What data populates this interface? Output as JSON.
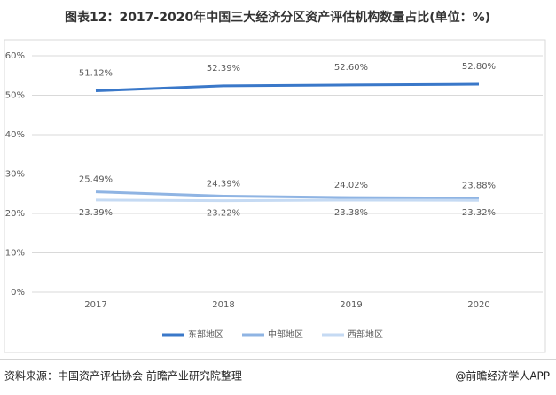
{
  "chart_data": {
    "type": "line",
    "title": "图表12：2017-2020年中国三大经济分区资产评估机构数量占比(单位：%)",
    "categories": [
      "2017",
      "2018",
      "2019",
      "2020"
    ],
    "series": [
      {
        "name": "东部地区",
        "color": "#3a78c9",
        "values": [
          51.12,
          52.39,
          52.6,
          52.8
        ],
        "value_labels": [
          "51.12%",
          "52.39%",
          "52.60%",
          "52.80%"
        ]
      },
      {
        "name": "中部地区",
        "color": "#8fb4e3",
        "values": [
          25.49,
          24.39,
          24.02,
          23.88
        ],
        "value_labels": [
          "25.49%",
          "24.39%",
          "24.02%",
          "23.88%"
        ]
      },
      {
        "name": "西部地区",
        "color": "#c5daf3",
        "values": [
          23.39,
          23.22,
          23.38,
          23.32
        ],
        "value_labels": [
          "23.39%",
          "23.22%",
          "23.38%",
          "23.32%"
        ]
      }
    ],
    "ylim": [
      0,
      60
    ],
    "yticks": [
      {
        "value": 0,
        "label": "0%"
      },
      {
        "value": 10,
        "label": "10%"
      },
      {
        "value": 20,
        "label": "20%"
      },
      {
        "value": 30,
        "label": "30%"
      },
      {
        "value": 40,
        "label": "40%"
      },
      {
        "value": 50,
        "label": "50%"
      },
      {
        "value": 60,
        "label": "60%"
      }
    ],
    "grid": true,
    "legend": "bottom",
    "source": "资料来源：中国资产评估协会 前瞻产业研究院整理",
    "credit": "@前瞻经济学人APP"
  }
}
